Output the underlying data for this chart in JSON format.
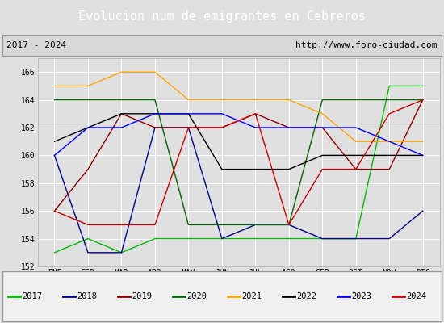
{
  "title": "Evolucion num de emigrantes en Cebreros",
  "subtitle_left": "2017 - 2024",
  "subtitle_right": "http://www.foro-ciudad.com",
  "months": [
    "ENE",
    "FEB",
    "MAR",
    "ABR",
    "MAY",
    "JUN",
    "JUL",
    "AGO",
    "SEP",
    "OCT",
    "NOV",
    "DIC"
  ],
  "series": {
    "2017": {
      "color": "#00bb00",
      "data": [
        153,
        154,
        153,
        154,
        154,
        154,
        154,
        154,
        154,
        154,
        165,
        165
      ]
    },
    "2018": {
      "color": "#00008b",
      "data": [
        160,
        153,
        153,
        162,
        162,
        154,
        155,
        155,
        154,
        154,
        154,
        156
      ]
    },
    "2019": {
      "color": "#8b0000",
      "data": [
        156,
        159,
        163,
        162,
        162,
        162,
        163,
        162,
        162,
        159,
        159,
        164
      ]
    },
    "2020": {
      "color": "#006400",
      "data": [
        164,
        164,
        164,
        164,
        155,
        155,
        155,
        155,
        164,
        164,
        164,
        164
      ]
    },
    "2021": {
      "color": "#ffa500",
      "data": [
        165,
        165,
        166,
        166,
        164,
        164,
        164,
        164,
        163,
        161,
        161,
        161
      ]
    },
    "2022": {
      "color": "#000000",
      "data": [
        161,
        162,
        163,
        163,
        163,
        159,
        159,
        159,
        160,
        160,
        160,
        160
      ]
    },
    "2023": {
      "color": "#0000ff",
      "data": [
        160,
        162,
        162,
        163,
        163,
        163,
        162,
        162,
        162,
        162,
        161,
        160
      ]
    },
    "2024": {
      "color": "#cc0000",
      "data": [
        156,
        155,
        155,
        155,
        162,
        162,
        163,
        155,
        159,
        159,
        163,
        164
      ]
    }
  },
  "ylim": [
    152,
    167
  ],
  "yticks": [
    152,
    154,
    156,
    158,
    160,
    162,
    164,
    166
  ],
  "bg_color": "#e0e0e0",
  "plot_bg_color": "#e0e0e0",
  "title_bg_color": "#4472c4",
  "title_text_color": "#ffffff",
  "grid_color": "#ffffff",
  "legend_bg_color": "#f0f0f0",
  "subtitle_bg_color": "#d8d8d8"
}
